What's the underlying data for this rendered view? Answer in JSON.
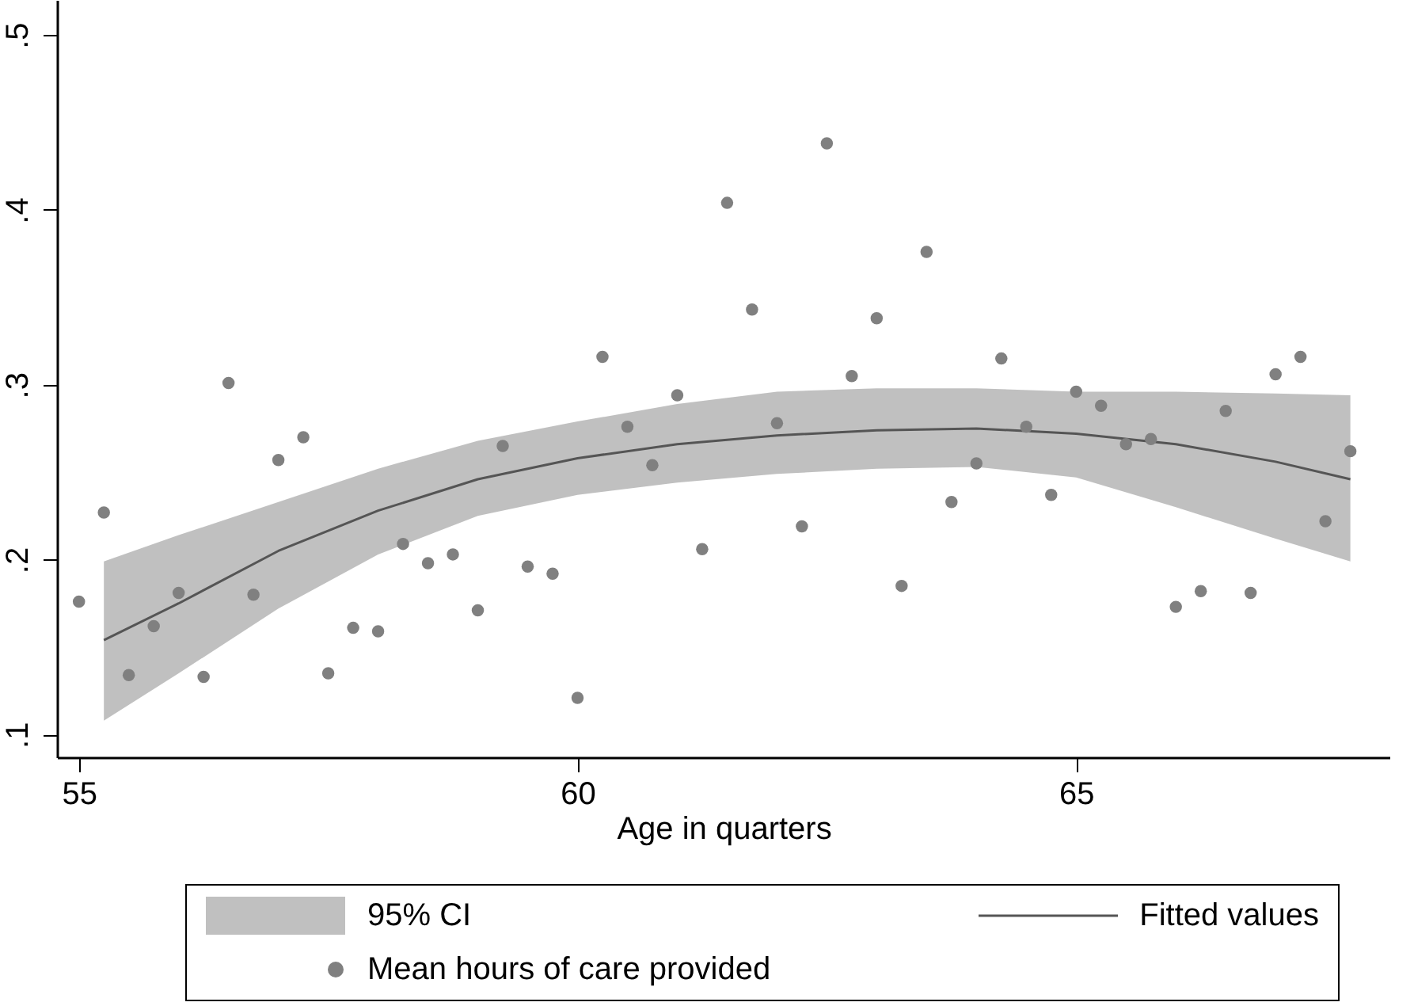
{
  "chart_data": {
    "type": "scatter",
    "xlabel": "Age in quarters",
    "xlim": [
      54.78,
      68.15
    ],
    "xticks": [
      55,
      60,
      65
    ],
    "ylim": [
      0.087,
      0.52
    ],
    "yticks": [
      {
        "value": 0.1,
        "label": ".1"
      },
      {
        "value": 0.2,
        "label": ".2"
      },
      {
        "value": 0.3,
        "label": ".3"
      },
      {
        "value": 0.4,
        "label": ".4"
      },
      {
        "value": 0.5,
        "label": ".5"
      }
    ],
    "grid": false,
    "legend": "bottom",
    "annotations": [
      "95% CI"
    ],
    "series": [
      {
        "name": "Fitted values",
        "type": "line",
        "color": "#555555",
        "x": [
          55.25,
          56,
          57,
          58,
          59,
          60,
          61,
          62,
          63,
          64,
          65,
          66,
          67,
          67.75
        ],
        "values": [
          0.154,
          0.175,
          0.205,
          0.228,
          0.246,
          0.258,
          0.266,
          0.271,
          0.274,
          0.275,
          0.272,
          0.266,
          0.256,
          0.246
        ],
        "lower": [
          0.108,
          0.135,
          0.172,
          0.203,
          0.225,
          0.237,
          0.244,
          0.249,
          0.252,
          0.253,
          0.247,
          0.23,
          0.212,
          0.199
        ],
        "upper": [
          0.199,
          0.214,
          0.233,
          0.252,
          0.268,
          0.279,
          0.289,
          0.296,
          0.298,
          0.298,
          0.296,
          0.296,
          0.295,
          0.294
        ]
      },
      {
        "name": "Mean hours of care provided",
        "marker": "circle",
        "color": "#808080",
        "x": [
          55,
          55.25,
          55.5,
          55.75,
          56,
          56.25,
          56.5,
          56.75,
          57,
          57.25,
          57.5,
          57.75,
          58,
          58.25,
          58.5,
          58.75,
          59,
          59.25,
          59.5,
          59.75,
          60,
          60.25,
          60.5,
          60.75,
          61,
          61.25,
          61.5,
          61.75,
          62,
          62.25,
          62.5,
          62.75,
          63,
          63.25,
          63.5,
          63.75,
          64,
          64.25,
          64.5,
          64.75,
          65,
          65.25,
          65.5,
          65.75,
          66,
          66.25,
          66.5,
          66.75,
          67,
          67.25,
          67.5,
          67.75
        ],
        "values": [
          0.176,
          0.227,
          0.134,
          0.162,
          0.181,
          0.133,
          0.301,
          0.18,
          0.257,
          0.27,
          0.135,
          0.161,
          0.159,
          0.209,
          0.198,
          0.203,
          0.171,
          0.265,
          0.196,
          0.192,
          0.121,
          0.316,
          0.276,
          0.254,
          0.294,
          0.206,
          0.404,
          0.343,
          0.278,
          0.219,
          0.438,
          0.305,
          0.338,
          0.185,
          0.376,
          0.233,
          0.255,
          0.315,
          0.276,
          0.237,
          0.296,
          0.288,
          0.266,
          0.269,
          0.173,
          0.182,
          0.285,
          0.181,
          0.306,
          0.316,
          0.222,
          0.262
        ]
      }
    ]
  }
}
